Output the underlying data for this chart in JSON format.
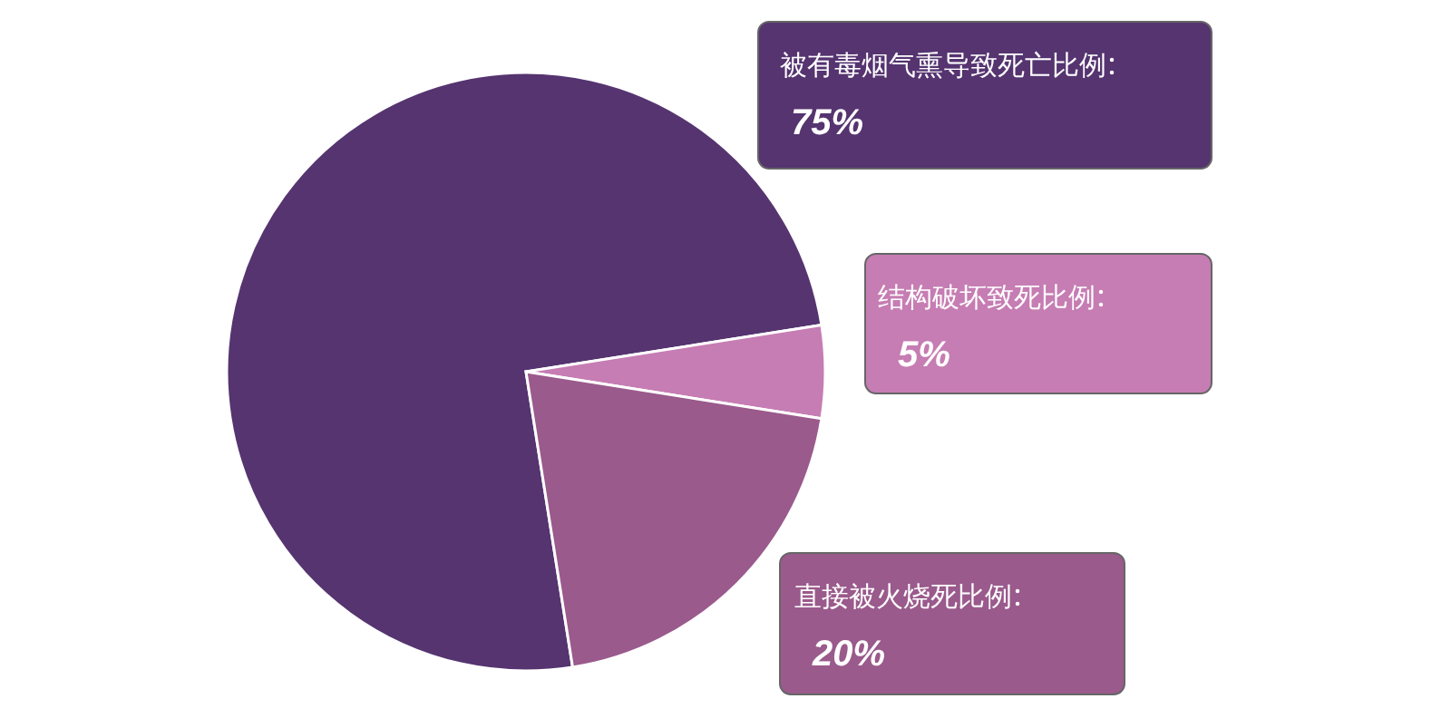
{
  "chart_data": {
    "type": "pie",
    "categories": [
      "被有毒烟气熏导致死亡比例",
      "结构破坏致死比例",
      "直接被火烧死比例"
    ],
    "values": [
      75,
      5,
      20
    ],
    "colors": [
      "#553470",
      "#c67db3",
      "#9a5a8c"
    ],
    "value_labels": [
      "75%",
      "5%",
      "20%"
    ]
  }
}
